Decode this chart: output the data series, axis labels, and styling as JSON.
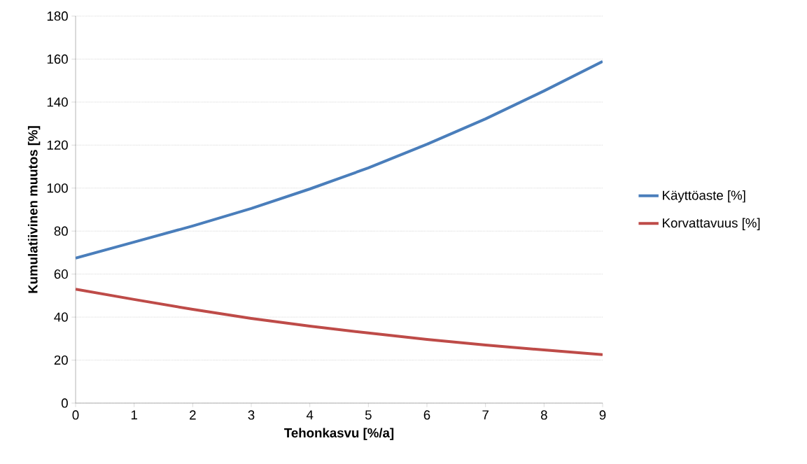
{
  "chart_data": {
    "type": "line",
    "xlabel": "Tehonkasvu [%/a]",
    "ylabel": "Kumulatiivinen muutos [%]",
    "x": [
      0,
      1,
      2,
      3,
      4,
      5,
      6,
      7,
      8,
      9
    ],
    "series": [
      {
        "name": "Käyttöaste [%]",
        "color": "#4a7ebb",
        "values": [
          67.4,
          74.9,
          82.4,
          90.5,
          99.6,
          109.4,
          120.4,
          132.2,
          145.2,
          158.9
        ]
      },
      {
        "name": "Korvattavuus [%]",
        "color": "#be4b48",
        "values": [
          53,
          48.2,
          43.6,
          39.4,
          35.8,
          32.6,
          29.6,
          27,
          24.7,
          22.5
        ]
      }
    ],
    "xlim": [
      0,
      9
    ],
    "xticks": [
      0,
      1,
      2,
      3,
      4,
      5,
      6,
      7,
      8,
      9
    ],
    "ylim": [
      0,
      180
    ],
    "yticks": [
      0,
      20,
      40,
      60,
      80,
      100,
      120,
      140,
      160,
      180
    ],
    "grid": "y",
    "legend": "right",
    "marker": "none",
    "line_style": "solid"
  }
}
